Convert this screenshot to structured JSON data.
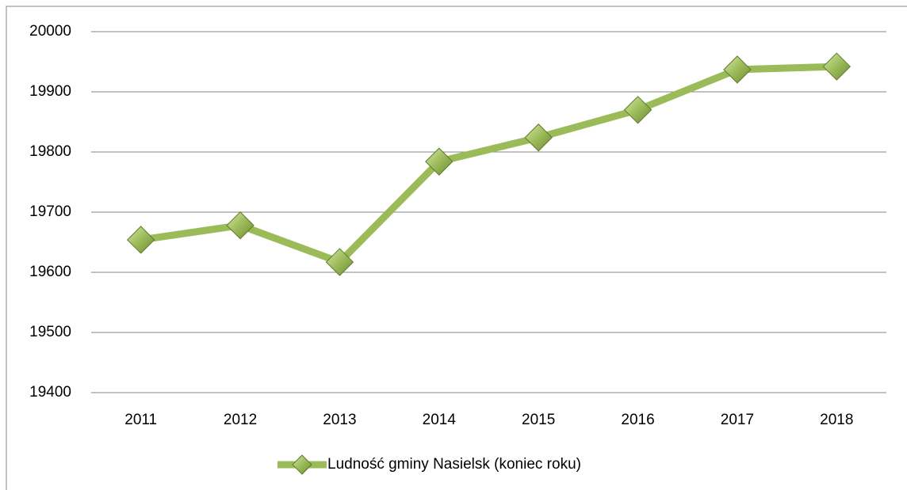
{
  "chart_data": {
    "type": "line",
    "categories": [
      "2011",
      "2012",
      "2013",
      "2014",
      "2015",
      "2016",
      "2017",
      "2018"
    ],
    "series": [
      {
        "name": "Ludność gminy Nasielsk (koniec roku)",
        "color": "#9bbb59",
        "values": [
          19654,
          19678,
          19617,
          19784,
          19824,
          19870,
          19937,
          19942
        ]
      }
    ],
    "ylim": [
      19400,
      20000
    ],
    "yticks": [
      19400,
      19500,
      19600,
      19700,
      19800,
      19900,
      20000
    ],
    "grid": true,
    "legend": "bottom"
  }
}
